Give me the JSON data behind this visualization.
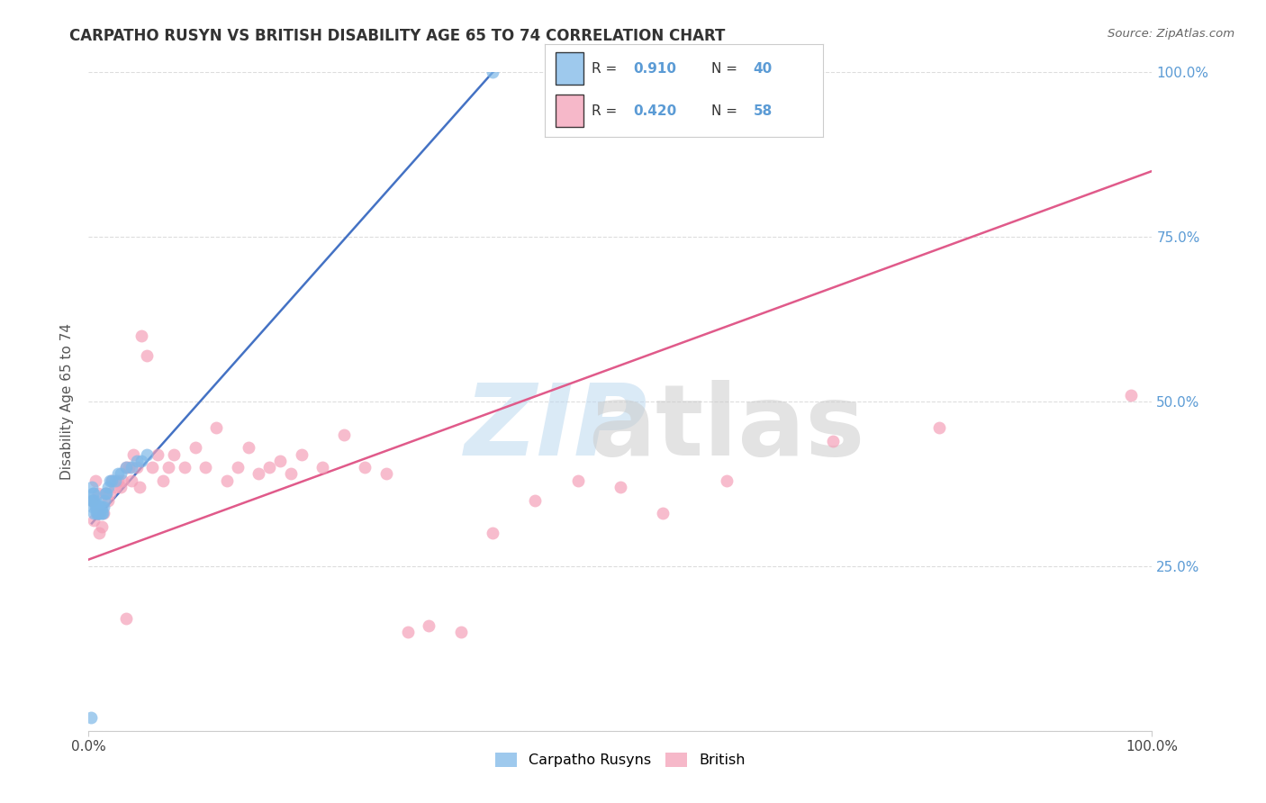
{
  "title": "CARPATHO RUSYN VS BRITISH DISABILITY AGE 65 TO 74 CORRELATION CHART",
  "source": "Source: ZipAtlas.com",
  "ylabel": "Disability Age 65 to 74",
  "xlim": [
    0.0,
    1.0
  ],
  "ylim": [
    0.0,
    1.0
  ],
  "xtick_vals": [
    0.0,
    1.0
  ],
  "xtick_labels": [
    "0.0%",
    "100.0%"
  ],
  "ytick_vals": [
    0.0,
    0.25,
    0.5,
    0.75,
    1.0
  ],
  "ytick_labels_right": [
    "",
    "25.0%",
    "50.0%",
    "75.0%",
    "100.0%"
  ],
  "blue_color": "#7EB8E8",
  "pink_color": "#F4A0B8",
  "line_blue_color": "#4472C4",
  "line_pink_color": "#E05A8A",
  "carpatho_label": "Carpatho Rusyns",
  "british_label": "British",
  "blue_scatter_x": [
    0.002,
    0.003,
    0.003,
    0.004,
    0.004,
    0.004,
    0.005,
    0.005,
    0.005,
    0.006,
    0.006,
    0.007,
    0.007,
    0.008,
    0.008,
    0.009,
    0.009,
    0.01,
    0.01,
    0.011,
    0.011,
    0.012,
    0.012,
    0.013,
    0.014,
    0.015,
    0.016,
    0.017,
    0.018,
    0.02,
    0.022,
    0.025,
    0.028,
    0.03,
    0.035,
    0.04,
    0.045,
    0.05,
    0.055,
    0.38
  ],
  "blue_scatter_y": [
    0.02,
    0.35,
    0.37,
    0.34,
    0.35,
    0.36,
    0.33,
    0.35,
    0.36,
    0.34,
    0.35,
    0.33,
    0.34,
    0.33,
    0.34,
    0.33,
    0.34,
    0.33,
    0.34,
    0.33,
    0.34,
    0.33,
    0.34,
    0.33,
    0.34,
    0.35,
    0.36,
    0.36,
    0.37,
    0.38,
    0.38,
    0.38,
    0.39,
    0.39,
    0.4,
    0.4,
    0.41,
    0.41,
    0.42,
    1.0
  ],
  "pink_scatter_x": [
    0.004,
    0.005,
    0.006,
    0.008,
    0.009,
    0.01,
    0.012,
    0.014,
    0.016,
    0.018,
    0.02,
    0.022,
    0.025,
    0.028,
    0.03,
    0.032,
    0.035,
    0.038,
    0.04,
    0.042,
    0.045,
    0.048,
    0.05,
    0.055,
    0.06,
    0.065,
    0.07,
    0.075,
    0.08,
    0.09,
    0.1,
    0.11,
    0.12,
    0.13,
    0.14,
    0.15,
    0.16,
    0.17,
    0.18,
    0.19,
    0.2,
    0.22,
    0.24,
    0.26,
    0.28,
    0.3,
    0.32,
    0.35,
    0.38,
    0.42,
    0.46,
    0.5,
    0.54,
    0.6,
    0.7,
    0.8,
    0.98,
    0.035
  ],
  "pink_scatter_y": [
    0.35,
    0.32,
    0.38,
    0.33,
    0.36,
    0.3,
    0.31,
    0.33,
    0.36,
    0.35,
    0.36,
    0.38,
    0.37,
    0.38,
    0.37,
    0.38,
    0.4,
    0.4,
    0.38,
    0.42,
    0.4,
    0.37,
    0.6,
    0.57,
    0.4,
    0.42,
    0.38,
    0.4,
    0.42,
    0.4,
    0.43,
    0.4,
    0.46,
    0.38,
    0.4,
    0.43,
    0.39,
    0.4,
    0.41,
    0.39,
    0.42,
    0.4,
    0.45,
    0.4,
    0.39,
    0.15,
    0.16,
    0.15,
    0.3,
    0.35,
    0.38,
    0.37,
    0.33,
    0.38,
    0.44,
    0.46,
    0.51,
    0.17
  ],
  "blue_line_x": [
    0.003,
    0.38
  ],
  "blue_line_y": [
    0.315,
    1.0
  ],
  "pink_line_x": [
    0.0,
    1.0
  ],
  "pink_line_y": [
    0.26,
    0.85
  ],
  "legend_r1": "0.910",
  "legend_n1": "40",
  "legend_r2": "0.420",
  "legend_n2": "58"
}
